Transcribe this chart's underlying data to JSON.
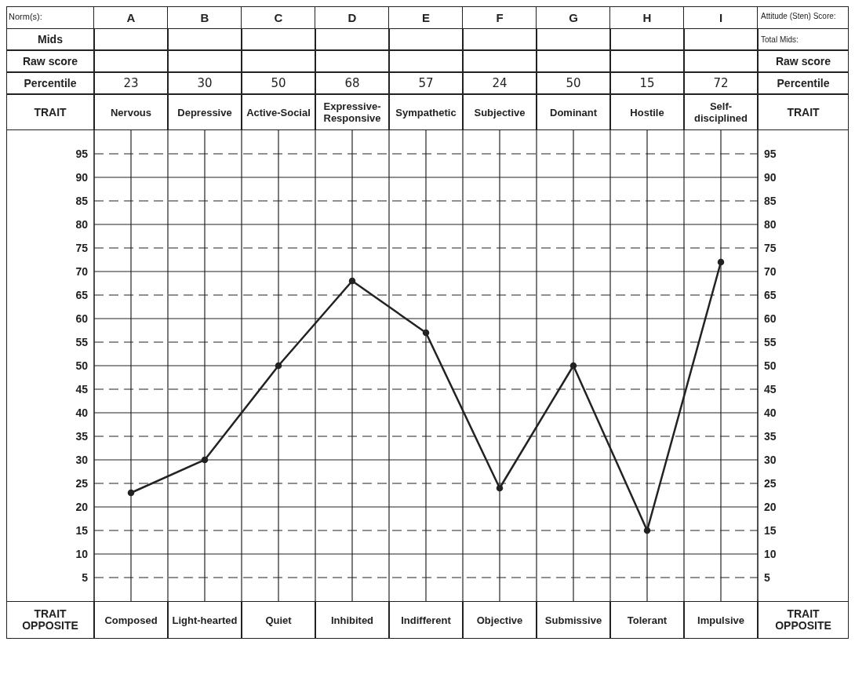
{
  "chart_data": {
    "type": "line",
    "categories": [
      "A",
      "B",
      "C",
      "D",
      "E",
      "F",
      "G",
      "H",
      "I"
    ],
    "values": [
      23,
      30,
      50,
      68,
      57,
      24,
      50,
      15,
      72
    ],
    "color": "#222222",
    "data_labels": true,
    "marker": "circle",
    "line_style": "solid",
    "grid": true,
    "ylim": [
      0,
      100
    ],
    "yticks": [
      5,
      10,
      15,
      20,
      25,
      30,
      35,
      40,
      45,
      50,
      55,
      60,
      65,
      70,
      75,
      80,
      85,
      90,
      95
    ],
    "y2lim": [
      0,
      100
    ],
    "y2ticks": [
      5,
      10,
      15,
      20,
      25,
      30,
      35,
      40,
      45,
      50,
      55,
      60,
      65,
      70,
      75,
      80,
      85,
      90,
      95
    ],
    "annotations": [
      "Norm(s):",
      "Mids",
      "Raw score",
      "Percentile",
      "TRAIT",
      "Attitude (Sten) Score:",
      "Total Mids:",
      "Raw score",
      "Percentile",
      "TRAIT",
      "Nervous",
      "Depressive",
      "Active-Social",
      "Expressive-Responsive",
      "Sympathetic",
      "Subjective",
      "Dominant",
      "Hostile",
      "Self-disciplined",
      "TRAIT OPPOSITE",
      "Composed",
      "Light-hearted",
      "Quiet",
      "Inhibited",
      "Indifferent",
      "Objective",
      "Submissive",
      "Tolerant",
      "Impulsive",
      "TRAIT OPPOSITE"
    ]
  }
}
